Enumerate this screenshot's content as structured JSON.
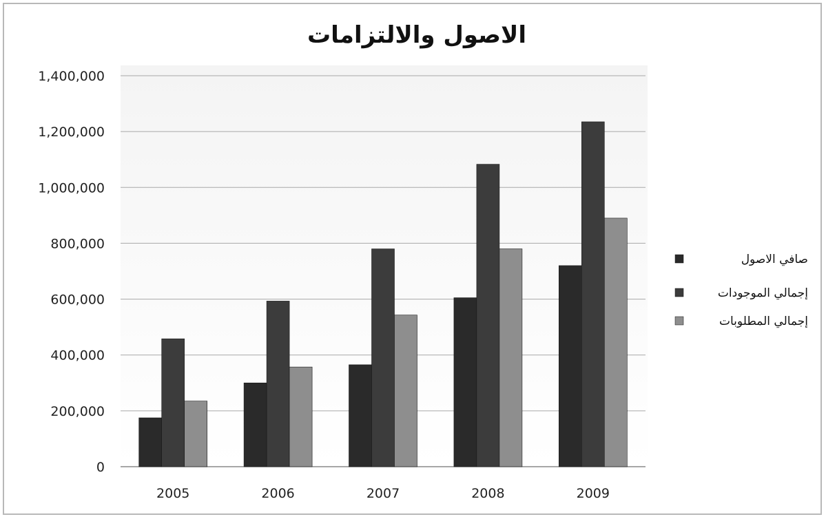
{
  "chart_data": {
    "type": "bar",
    "title": "الاصول والالتزامات",
    "xlabel": "",
    "ylabel": "",
    "categories": [
      "2005",
      "2006",
      "2007",
      "2008",
      "2009"
    ],
    "ylim": [
      0,
      1400000
    ],
    "yticks": [
      0,
      200000,
      400000,
      600000,
      800000,
      1000000,
      1200000,
      1400000
    ],
    "ytick_labels": [
      "0",
      "200,000",
      "400,000",
      "600,000",
      "800,000",
      "1,000,000",
      "1,200,000",
      "1,400,000"
    ],
    "grid": true,
    "legend_position": "right",
    "series": [
      {
        "name": "صافي الاصول",
        "color": "#2a2a2a",
        "values": [
          175000,
          300000,
          365000,
          605000,
          720000
        ]
      },
      {
        "name": "إجمالي الموجودات",
        "color": "#3c3c3c",
        "values": [
          458000,
          593000,
          780000,
          1083000,
          1235000
        ]
      },
      {
        "name": "إجمالي المطلوبات",
        "color": "#8e8e8e",
        "values": [
          235000,
          357000,
          543000,
          780000,
          890000
        ]
      }
    ]
  }
}
